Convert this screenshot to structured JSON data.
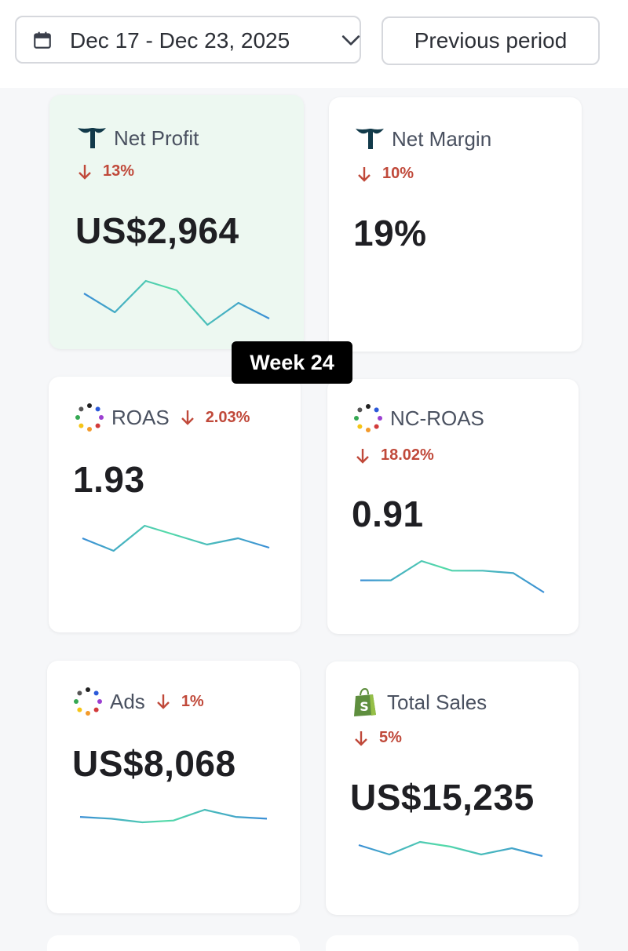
{
  "header": {
    "date_range": "Dec 17 - Dec 23, 2025",
    "compare_label": "Previous period"
  },
  "badge": {
    "label": "Week 24"
  },
  "metrics": [
    {
      "title": "Net Profit",
      "delta": "13%",
      "direction": "down",
      "value": "US$2,964",
      "icon": "triple-whale-logo-icon",
      "highlighted": true,
      "trend": [
        6,
        3,
        8,
        6.5,
        1,
        4.5,
        2
      ]
    },
    {
      "title": "Net Margin",
      "delta": "10%",
      "direction": "down",
      "value": "19%",
      "icon": "triple-whale-logo-icon",
      "highlighted": false,
      "trend": []
    },
    {
      "title": "ROAS",
      "delta": "2.03%",
      "direction": "down",
      "value": "1.93",
      "icon": "dotted-circle-icon",
      "highlighted": false,
      "trend": [
        5,
        3,
        7,
        5.5,
        4,
        5,
        3.5
      ]
    },
    {
      "title": "NC-ROAS",
      "delta": "18.02%",
      "direction": "down",
      "value": "0.91",
      "icon": "dotted-circle-icon",
      "highlighted": false,
      "trend": [
        3,
        3,
        7,
        5,
        5,
        4.5,
        0.5
      ]
    },
    {
      "title": "Ads",
      "delta": "1%",
      "direction": "down",
      "value": "US$8,068",
      "icon": "dotted-circle-icon",
      "highlighted": false,
      "trend": [
        5,
        4.5,
        3.5,
        4,
        7,
        5,
        4.5
      ]
    },
    {
      "title": "Total Sales",
      "delta": "5%",
      "direction": "down",
      "value": "US$15,235",
      "icon": "shopify-bag-icon",
      "highlighted": false,
      "trend": [
        6,
        3,
        7,
        5.5,
        3,
        5,
        2.5
      ]
    }
  ],
  "colors": {
    "negative": "#c0493a",
    "spark_start": "#3b8fd6",
    "spark_end": "#54dba8",
    "highlight_bg": "#edf8f1"
  }
}
